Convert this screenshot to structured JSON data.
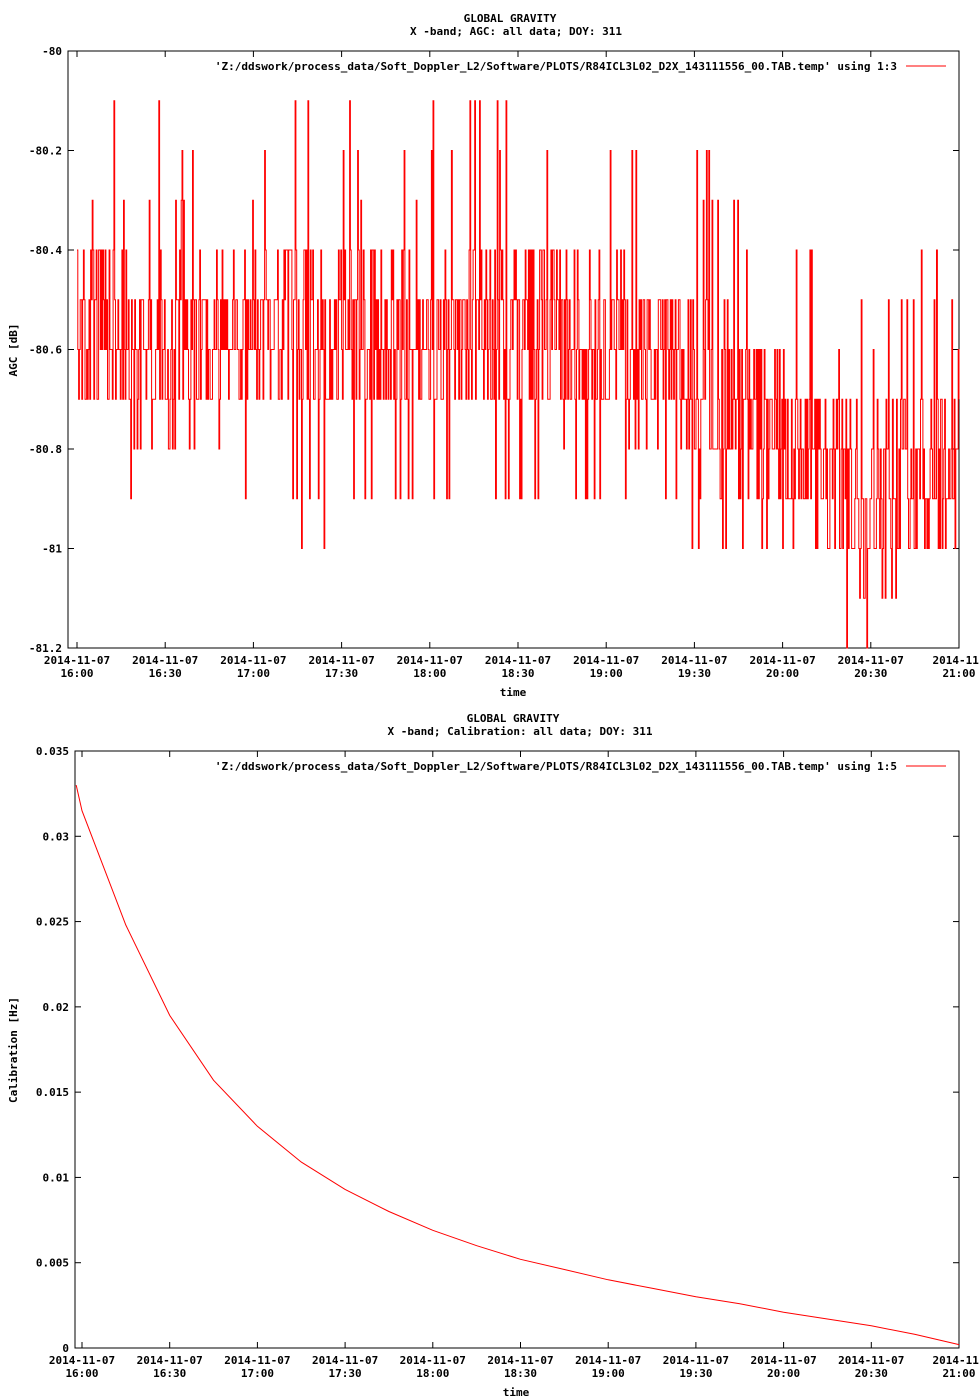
{
  "colors": {
    "series": "#ff0000",
    "axis": "#000000",
    "background": "#ffffff"
  },
  "chart_data": [
    {
      "type": "line",
      "title": "GLOBAL GRAVITY",
      "subtitle": "X -band; AGC: all data; DOY: 311",
      "xlabel": "time",
      "ylabel": "AGC [dB]",
      "ylim": [
        -81.2,
        -80
      ],
      "xlim": [
        "2014-11-07 16:00",
        "2014-11-07 21:00"
      ],
      "x_ticks": [
        {
          "d": "2014-11-07",
          "t": "16:00"
        },
        {
          "d": "2014-11-07",
          "t": "16:30"
        },
        {
          "d": "2014-11-07",
          "t": "17:00"
        },
        {
          "d": "2014-11-07",
          "t": "17:30"
        },
        {
          "d": "2014-11-07",
          "t": "18:00"
        },
        {
          "d": "2014-11-07",
          "t": "18:30"
        },
        {
          "d": "2014-11-07",
          "t": "19:00"
        },
        {
          "d": "2014-11-07",
          "t": "19:30"
        },
        {
          "d": "2014-11-07",
          "t": "20:00"
        },
        {
          "d": "2014-11-07",
          "t": "20:30"
        },
        {
          "d": "2014-11-",
          "t": "21:00"
        }
      ],
      "y_ticks": [
        "-80",
        "-80.2",
        "-80.4",
        "-80.6",
        "-80.8",
        "-81",
        "-81.2"
      ],
      "y_tick_values": [
        -80,
        -80.2,
        -80.4,
        -80.6,
        -80.8,
        -81,
        -81.2
      ],
      "legend": "'Z:/ddswork/process_data/Soft_Doppler_L2/Software/PLOTS/R84ICL3L02_D2X_143111556_00.TAB.temp' using 1:3",
      "legend_position": "top-right",
      "grid": false,
      "series": [
        {
          "x": [
            "16:00",
            "16:10",
            "16:20",
            "16:30",
            "16:40",
            "16:50",
            "17:00",
            "17:10",
            "17:20",
            "17:30",
            "17:40",
            "17:50",
            "18:00",
            "18:10",
            "18:20",
            "18:30",
            "18:40",
            "18:50",
            "19:00",
            "19:10",
            "19:20",
            "19:30",
            "19:40",
            "19:50",
            "20:00",
            "20:10",
            "20:20",
            "20:30",
            "20:40",
            "20:50",
            "21:00"
          ],
          "mean": [
            -80.6,
            -80.55,
            -80.6,
            -80.6,
            -80.6,
            -80.58,
            -80.6,
            -80.55,
            -80.55,
            -80.55,
            -80.58,
            -80.55,
            -80.6,
            -80.55,
            -80.55,
            -80.55,
            -80.55,
            -80.6,
            -80.55,
            -80.6,
            -80.62,
            -80.68,
            -80.7,
            -80.75,
            -80.8,
            -80.85,
            -80.88,
            -80.9,
            -80.85,
            -80.85,
            -80.8
          ],
          "min": [
            -80.9,
            -80.9,
            -80.85,
            -80.8,
            -80.8,
            -80.9,
            -80.9,
            -80.9,
            -81,
            -80.9,
            -80.9,
            -80.9,
            -81,
            -80.9,
            -80.9,
            -80.9,
            -80.9,
            -80.9,
            -80.9,
            -80.9,
            -80.9,
            -81,
            -81,
            -81,
            -81,
            -81.1,
            -81.2,
            -81.2,
            -81.1,
            -81.05,
            -81
          ]
        }
      ]
    },
    {
      "type": "line",
      "title": "GLOBAL GRAVITY",
      "subtitle": "X -band; Calibration: all data; DOY: 311",
      "xlabel": "time",
      "ylabel": "Calibration [Hz]",
      "ylim": [
        0,
        0.035
      ],
      "xlim": [
        "2014-11-07 16:00",
        "2014-11-07 21:00"
      ],
      "x_ticks": [
        {
          "d": "2014-11-07",
          "t": "16:00"
        },
        {
          "d": "2014-11-07",
          "t": "16:30"
        },
        {
          "d": "2014-11-07",
          "t": "17:00"
        },
        {
          "d": "2014-11-07",
          "t": "17:30"
        },
        {
          "d": "2014-11-07",
          "t": "18:00"
        },
        {
          "d": "2014-11-07",
          "t": "18:30"
        },
        {
          "d": "2014-11-07",
          "t": "19:00"
        },
        {
          "d": "2014-11-07",
          "t": "19:30"
        },
        {
          "d": "2014-11-07",
          "t": "20:00"
        },
        {
          "d": "2014-11-07",
          "t": "20:30"
        },
        {
          "d": "2014-11-",
          "t": "21:00"
        }
      ],
      "y_ticks": [
        "0.035",
        "0.03",
        "0.025",
        "0.02",
        "0.015",
        "0.01",
        "0.005",
        "0"
      ],
      "y_tick_values": [
        0.035,
        0.03,
        0.025,
        0.02,
        0.015,
        0.01,
        0.005,
        0
      ],
      "legend": "'Z:/ddswork/process_data/Soft_Doppler_L2/Software/PLOTS/R84ICL3L02_D2X_143111556_00.TAB.temp' using 1:5",
      "legend_position": "top-right",
      "grid": false,
      "series": [
        {
          "x": [
            "15:58",
            "16:00",
            "16:15",
            "16:30",
            "16:45",
            "17:00",
            "17:15",
            "17:30",
            "17:45",
            "18:00",
            "18:15",
            "18:30",
            "18:45",
            "19:00",
            "19:15",
            "19:30",
            "19:45",
            "20:00",
            "20:15",
            "20:30",
            "20:45",
            "21:00"
          ],
          "y": [
            0.033,
            0.0315,
            0.0248,
            0.0195,
            0.0157,
            0.013,
            0.0109,
            0.0093,
            0.008,
            0.0069,
            0.006,
            0.0052,
            0.0046,
            0.004,
            0.0035,
            0.003,
            0.0026,
            0.0021,
            0.0017,
            0.0013,
            0.0008,
            0.0002
          ]
        }
      ]
    }
  ]
}
